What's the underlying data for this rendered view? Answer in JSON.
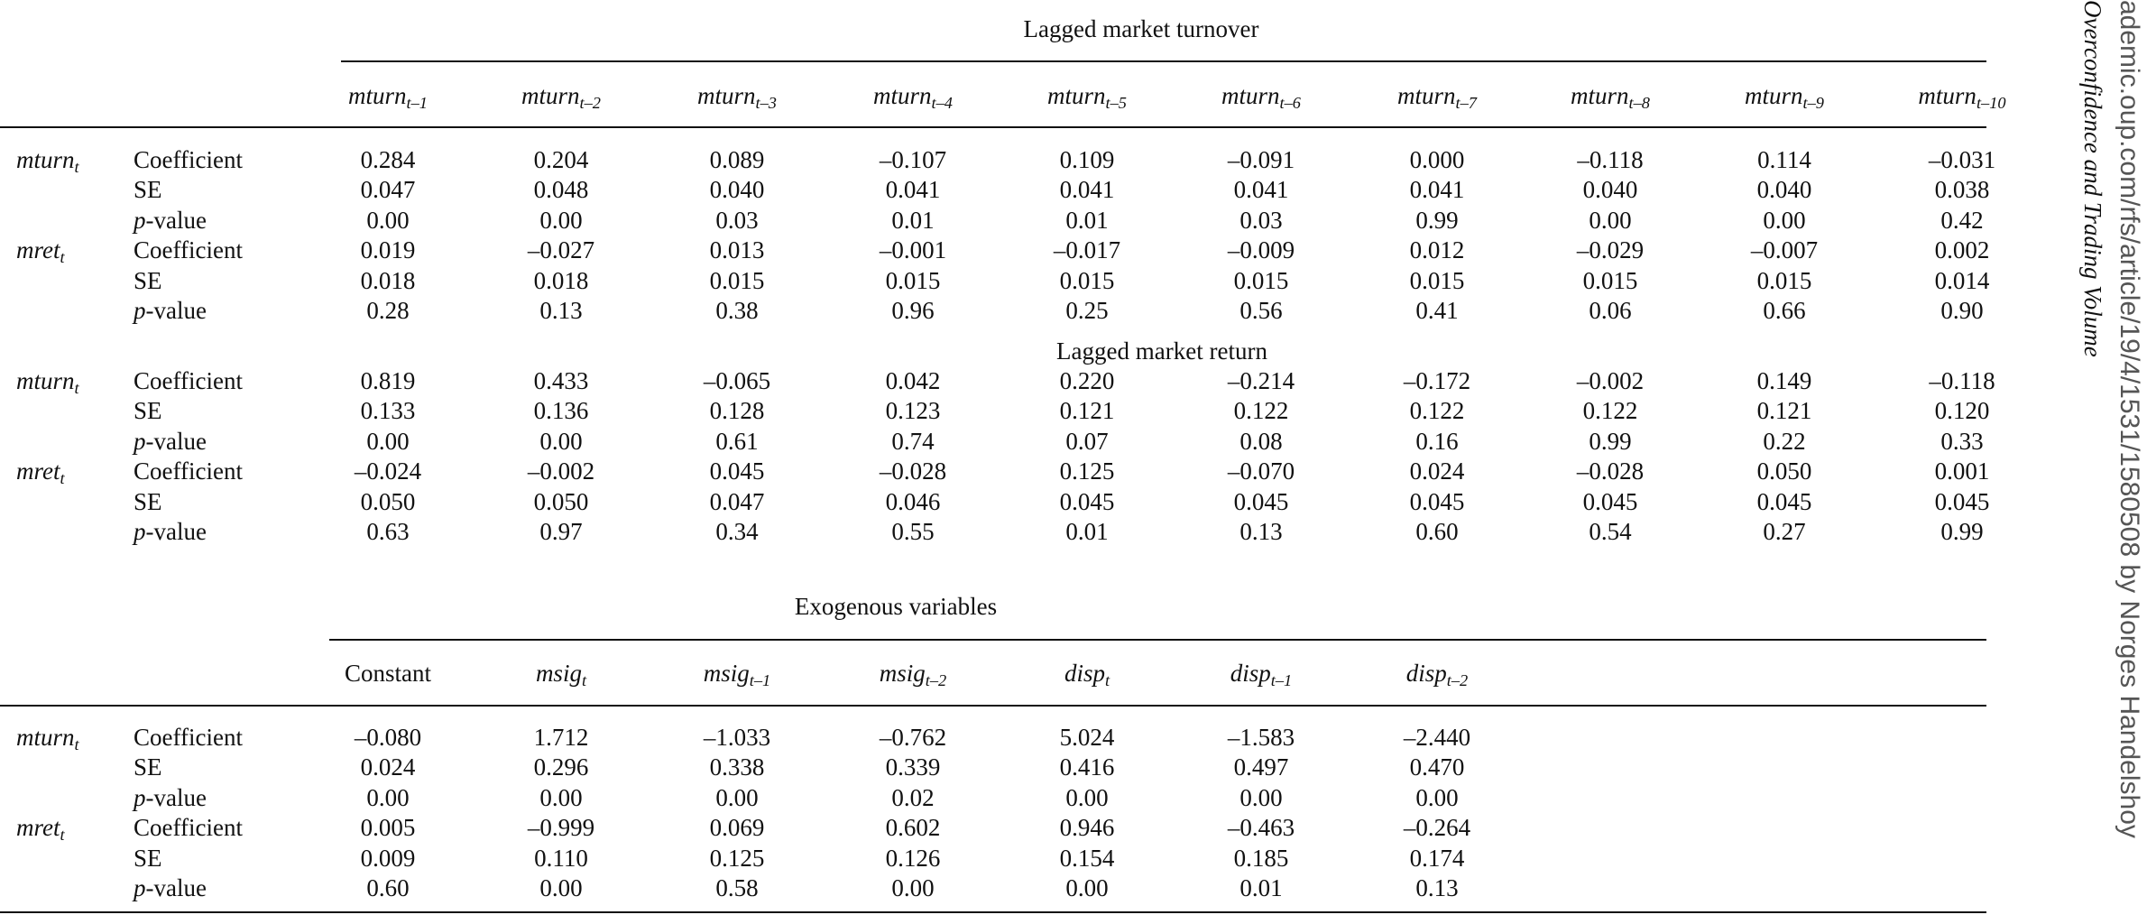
{
  "margin": {
    "running_head": "Overconfidence and Trading Volume",
    "download_note": "ademic.oup.com/rfs/article/19/4/1531/1580508 by Norges Handelshoy"
  },
  "panel_a": {
    "header": "Lagged market turnover",
    "columns": [
      {
        "base": "mturn",
        "sub": "t–1"
      },
      {
        "base": "mturn",
        "sub": "t–2"
      },
      {
        "base": "mturn",
        "sub": "t–3"
      },
      {
        "base": "mturn",
        "sub": "t–4"
      },
      {
        "base": "mturn",
        "sub": "t–5"
      },
      {
        "base": "mturn",
        "sub": "t–6"
      },
      {
        "base": "mturn",
        "sub": "t–7"
      },
      {
        "base": "mturn",
        "sub": "t–8"
      },
      {
        "base": "mturn",
        "sub": "t–9"
      },
      {
        "base": "mturn",
        "sub": "t–10"
      }
    ],
    "groups": [
      {
        "dep": {
          "base": "mturn",
          "sub": "t"
        },
        "rows": [
          {
            "stat": "Coefficient",
            "values": [
              "0.284",
              "0.204",
              "0.089",
              "–0.107",
              "0.109",
              "–0.091",
              "0.000",
              "–0.118",
              "0.114",
              "–0.031"
            ]
          },
          {
            "stat": "SE",
            "values": [
              "0.047",
              "0.048",
              "0.040",
              "0.041",
              "0.041",
              "0.041",
              "0.041",
              "0.040",
              "0.040",
              "0.038"
            ]
          },
          {
            "stat": "p-value",
            "values": [
              "0.00",
              "0.00",
              "0.03",
              "0.01",
              "0.01",
              "0.03",
              "0.99",
              "0.00",
              "0.00",
              "0.42"
            ]
          }
        ]
      },
      {
        "dep": {
          "base": "mret",
          "sub": "t"
        },
        "rows": [
          {
            "stat": "Coefficient",
            "values": [
              "0.019",
              "–0.027",
              "0.013",
              "–0.001",
              "–0.017",
              "–0.009",
              "0.012",
              "–0.029",
              "–0.007",
              "0.002"
            ]
          },
          {
            "stat": "SE",
            "values": [
              "0.018",
              "0.018",
              "0.015",
              "0.015",
              "0.015",
              "0.015",
              "0.015",
              "0.015",
              "0.015",
              "0.014"
            ]
          },
          {
            "stat": "p-value",
            "values": [
              "0.28",
              "0.13",
              "0.38",
              "0.96",
              "0.25",
              "0.56",
              "0.41",
              "0.06",
              "0.66",
              "0.90"
            ]
          }
        ]
      }
    ]
  },
  "panel_b": {
    "header": "Lagged market return",
    "groups": [
      {
        "dep": {
          "base": "mturn",
          "sub": "t"
        },
        "rows": [
          {
            "stat": "Coefficient",
            "values": [
              "0.819",
              "0.433",
              "–0.065",
              "0.042",
              "0.220",
              "–0.214",
              "–0.172",
              "–0.002",
              "0.149",
              "–0.118"
            ]
          },
          {
            "stat": "SE",
            "values": [
              "0.133",
              "0.136",
              "0.128",
              "0.123",
              "0.121",
              "0.122",
              "0.122",
              "0.122",
              "0.121",
              "0.120"
            ]
          },
          {
            "stat": "p-value",
            "values": [
              "0.00",
              "0.00",
              "0.61",
              "0.74",
              "0.07",
              "0.08",
              "0.16",
              "0.99",
              "0.22",
              "0.33"
            ]
          }
        ]
      },
      {
        "dep": {
          "base": "mret",
          "sub": "t"
        },
        "rows": [
          {
            "stat": "Coefficient",
            "values": [
              "–0.024",
              "–0.002",
              "0.045",
              "–0.028",
              "0.125",
              "–0.070",
              "0.024",
              "–0.028",
              "0.050",
              "0.001"
            ]
          },
          {
            "stat": "SE",
            "values": [
              "0.050",
              "0.050",
              "0.047",
              "0.046",
              "0.045",
              "0.045",
              "0.045",
              "0.045",
              "0.045",
              "0.045"
            ]
          },
          {
            "stat": "p-value",
            "values": [
              "0.63",
              "0.97",
              "0.34",
              "0.55",
              "0.01",
              "0.13",
              "0.60",
              "0.54",
              "0.27",
              "0.99"
            ]
          }
        ]
      }
    ]
  },
  "panel_c": {
    "header": "Exogenous variables",
    "columns": [
      {
        "base": "Constant",
        "sub": "",
        "italic": false
      },
      {
        "base": "msig",
        "sub": "t",
        "italic": true
      },
      {
        "base": "msig",
        "sub": "t–1",
        "italic": true
      },
      {
        "base": "msig",
        "sub": "t–2",
        "italic": true
      },
      {
        "base": "disp",
        "sub": "t",
        "italic": true
      },
      {
        "base": "disp",
        "sub": "t–1",
        "italic": true
      },
      {
        "base": "disp",
        "sub": "t–2",
        "italic": true
      }
    ],
    "groups": [
      {
        "dep": {
          "base": "mturn",
          "sub": "t"
        },
        "rows": [
          {
            "stat": "Coefficient",
            "values": [
              "–0.080",
              "1.712",
              "–1.033",
              "–0.762",
              "5.024",
              "–1.583",
              "–2.440"
            ]
          },
          {
            "stat": "SE",
            "values": [
              "0.024",
              "0.296",
              "0.338",
              "0.339",
              "0.416",
              "0.497",
              "0.470"
            ]
          },
          {
            "stat": "p-value",
            "values": [
              "0.00",
              "0.00",
              "0.00",
              "0.02",
              "0.00",
              "0.00",
              "0.00"
            ]
          }
        ]
      },
      {
        "dep": {
          "base": "mret",
          "sub": "t"
        },
        "rows": [
          {
            "stat": "Coefficient",
            "values": [
              "0.005",
              "–0.999",
              "0.069",
              "0.602",
              "0.946",
              "–0.463",
              "–0.264"
            ]
          },
          {
            "stat": "SE",
            "values": [
              "0.009",
              "0.110",
              "0.125",
              "0.126",
              "0.154",
              "0.185",
              "0.174"
            ]
          },
          {
            "stat": "p-value",
            "values": [
              "0.60",
              "0.00",
              "0.58",
              "0.00",
              "0.00",
              "0.01",
              "0.13"
            ]
          }
        ]
      }
    ]
  }
}
